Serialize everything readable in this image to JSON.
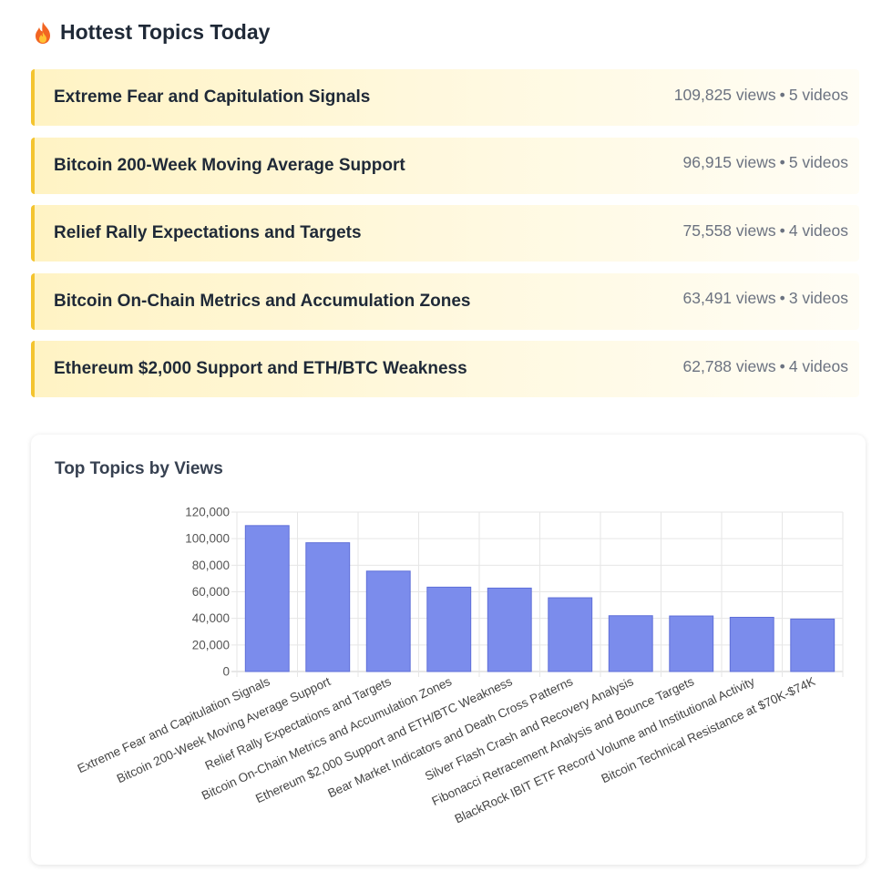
{
  "header": {
    "title": "Hottest Topics Today",
    "icon": "fire-icon"
  },
  "topics": [
    {
      "name": "Extreme Fear and Capitulation Signals",
      "views": "109,825 views",
      "videos": "5 videos"
    },
    {
      "name": "Bitcoin 200-Week Moving Average Support",
      "views": "96,915 views",
      "videos": "5 videos"
    },
    {
      "name": "Relief Rally Expectations and Targets",
      "views": "75,558 views",
      "videos": "4 videos"
    },
    {
      "name": "Bitcoin On-Chain Metrics and Accumulation Zones",
      "views": "63,491 views",
      "videos": "3 videos"
    },
    {
      "name": "Ethereum $2,000 Support and ETH/BTC Weakness",
      "views": "62,788 views",
      "videos": "4 videos"
    }
  ],
  "separator": "•",
  "colors": {
    "accent_border": "#f4c430",
    "bar_fill": "#7b8cec",
    "bar_stroke": "#5f6fd8"
  },
  "chart": {
    "title": "Top Topics by Views"
  },
  "chart_data": {
    "type": "bar",
    "categories": [
      "Extreme Fear and Capitulation Signals",
      "Bitcoin 200-Week Moving Average Support",
      "Relief Rally Expectations and Targets",
      "Bitcoin On-Chain Metrics and Accumulation Zones",
      "Ethereum $2,000 Support and ETH/BTC Weakness",
      "Bear Market Indicators and Death Cross Patterns",
      "Silver Flash Crash and Recovery Analysis",
      "Fibonacci Retracement Analysis and Bounce Targets",
      "BlackRock IBIT ETF Record Volume and Institutional Activity",
      "Bitcoin Technical Resistance at $70K-$74K"
    ],
    "values": [
      109825,
      96915,
      75558,
      63491,
      62788,
      55500,
      42000,
      41800,
      40800,
      39500
    ],
    "ylim": [
      0,
      120000
    ],
    "yticks": [
      "0",
      "20,000",
      "40,000",
      "60,000",
      "80,000",
      "100,000",
      "120,000"
    ],
    "grid": true,
    "legend": "none"
  }
}
